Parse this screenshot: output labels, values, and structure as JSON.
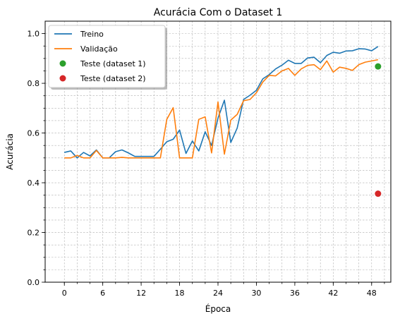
{
  "chart_data": {
    "type": "line",
    "title": "Acurácia Com o Dataset 1",
    "xlabel": "Época",
    "ylabel": "Acurácia",
    "xlim": [
      -3,
      51
    ],
    "ylim": [
      0,
      1.05
    ],
    "xticks": [
      0,
      6,
      12,
      18,
      24,
      30,
      36,
      42,
      48
    ],
    "yticks": [
      0.0,
      0.2,
      0.4,
      0.6,
      0.8,
      1.0
    ],
    "ytick_labels": [
      "0.0",
      "0.2",
      "0.4",
      "0.6",
      "0.8",
      "1.0"
    ],
    "grid": true,
    "legend_position": "upper-left",
    "series": [
      {
        "name": "Treino",
        "kind": "line",
        "color": "#1f77b4",
        "x": [
          0,
          1,
          2,
          3,
          4,
          5,
          6,
          7,
          8,
          9,
          10,
          11,
          12,
          13,
          14,
          15,
          16,
          17,
          18,
          19,
          20,
          21,
          22,
          23,
          24,
          25,
          26,
          27,
          28,
          29,
          30,
          31,
          32,
          33,
          34,
          35,
          36,
          37,
          38,
          39,
          40,
          41,
          42,
          43,
          44,
          45,
          46,
          47,
          48,
          49
        ],
        "y": [
          0.522,
          0.528,
          0.5,
          0.522,
          0.508,
          0.532,
          0.5,
          0.5,
          0.525,
          0.532,
          0.52,
          0.506,
          0.506,
          0.506,
          0.506,
          0.535,
          0.565,
          0.575,
          0.612,
          0.518,
          0.568,
          0.528,
          0.605,
          0.55,
          0.66,
          0.732,
          0.562,
          0.62,
          0.735,
          0.752,
          0.772,
          0.818,
          0.835,
          0.858,
          0.873,
          0.893,
          0.88,
          0.88,
          0.902,
          0.905,
          0.883,
          0.912,
          0.925,
          0.921,
          0.93,
          0.931,
          0.939,
          0.938,
          0.931,
          0.948
        ]
      },
      {
        "name": "Validação",
        "kind": "line",
        "color": "#ff7f0e",
        "x": [
          0,
          1,
          2,
          3,
          4,
          5,
          6,
          7,
          8,
          9,
          10,
          11,
          12,
          13,
          14,
          15,
          16,
          17,
          18,
          19,
          20,
          21,
          22,
          23,
          24,
          25,
          26,
          27,
          28,
          29,
          30,
          31,
          32,
          33,
          34,
          35,
          36,
          37,
          38,
          39,
          40,
          41,
          42,
          43,
          44,
          45,
          46,
          47,
          48,
          49
        ],
        "y": [
          0.5,
          0.5,
          0.51,
          0.5,
          0.5,
          0.53,
          0.5,
          0.5,
          0.5,
          0.502,
          0.5,
          0.5,
          0.5,
          0.5,
          0.5,
          0.5,
          0.655,
          0.702,
          0.5,
          0.5,
          0.5,
          0.655,
          0.665,
          0.52,
          0.725,
          0.515,
          0.652,
          0.675,
          0.73,
          0.735,
          0.762,
          0.805,
          0.832,
          0.83,
          0.85,
          0.86,
          0.832,
          0.858,
          0.872,
          0.875,
          0.855,
          0.89,
          0.845,
          0.865,
          0.86,
          0.852,
          0.875,
          0.885,
          0.89,
          0.895
        ]
      },
      {
        "name": "Teste (dataset 1)",
        "kind": "point",
        "color": "#2ca02c",
        "x": [
          49
        ],
        "y": [
          0.868
        ]
      },
      {
        "name": "Teste (dataset 2)",
        "kind": "point",
        "color": "#d62728",
        "x": [
          49
        ],
        "y": [
          0.356
        ]
      }
    ]
  }
}
